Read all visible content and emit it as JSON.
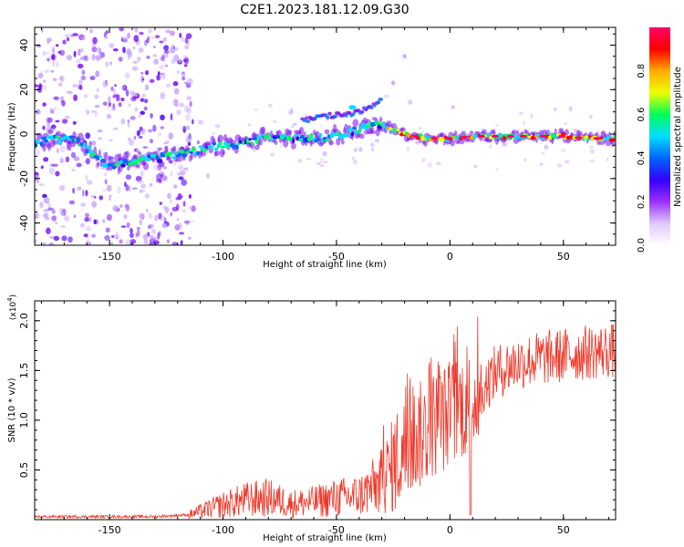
{
  "title": "C2E1.2023.181.12.09.G30",
  "colors": {
    "trace": "#ee3a2c",
    "scatter_low": "#c9a8ff",
    "scatter_mid": "#7a10f0",
    "scatter_high": "#4a00ff"
  },
  "chart_data": [
    {
      "type": "heatmap",
      "name": "spectrogram",
      "xlabel": "Height of straight line (km)",
      "ylabel": "Frequency (Hz)",
      "xlim": [
        -183,
        73
      ],
      "ylim": [
        -50,
        48
      ],
      "xticks": [
        -150,
        -100,
        -50,
        0,
        50
      ],
      "yticks": [
        -40,
        -20,
        0,
        20,
        40
      ],
      "colorbar": {
        "label": "Normalized spectral amplitude",
        "range": [
          0,
          1
        ],
        "ticks": [
          "0.0",
          "0.2",
          "0.4",
          "0.6",
          "0.8"
        ],
        "ramp": [
          "#ffffff",
          "#e0c8ff",
          "#9b30ff",
          "#3300ff",
          "#0066ff",
          "#00ddff",
          "#00ff55",
          "#eeff00",
          "#ffaa00",
          "#ff0000",
          "#ff0066"
        ]
      },
      "ridge": {
        "x": [
          -183,
          -175,
          -165,
          -150,
          -140,
          -130,
          -120,
          -110,
          -100,
          -90,
          -80,
          -70,
          -60,
          -50,
          -40,
          -35,
          -30,
          -25,
          -20,
          -15,
          -10,
          0,
          10,
          20,
          30,
          40,
          50,
          60,
          73
        ],
        "y": [
          -4,
          -2,
          -3,
          -14,
          -12,
          -11,
          -9,
          -7,
          -5,
          -4,
          -1,
          -2,
          -2,
          -1,
          2,
          4,
          4,
          2,
          0,
          -1,
          -2,
          -2,
          -1,
          -1,
          -1,
          -1,
          -1,
          -2,
          -2
        ]
      },
      "upper_branch": {
        "x": [
          -65,
          -55,
          -45,
          -40,
          -35,
          -30
        ],
        "y": [
          6,
          8,
          9,
          10,
          12,
          15
        ]
      },
      "isolated_points": {
        "x": [
          -20,
          -25
        ],
        "y": [
          35,
          23
        ]
      }
    },
    {
      "type": "line",
      "name": "snr",
      "xlabel": "Height of straight line (km)",
      "ylabel": "SNR (10 * v/v)",
      "y_multiplier": "(x10",
      "y_exponent": "4",
      "xlim": [
        -183,
        73
      ],
      "ylim": [
        0,
        2.2
      ],
      "xticks": [
        -150,
        -100,
        -50,
        0,
        50
      ],
      "yticks": [
        "0.5",
        "1.0",
        "1.5",
        "2.0"
      ],
      "envelope": {
        "x": [
          -183,
          -160,
          -130,
          -115,
          -100,
          -90,
          -80,
          -70,
          -60,
          -50,
          -40,
          -30,
          -25,
          -20,
          -15,
          -10,
          -5,
          0,
          5,
          8,
          10,
          15,
          20,
          30,
          40,
          50,
          60,
          73
        ],
        "y": [
          0.03,
          0.03,
          0.03,
          0.05,
          0.15,
          0.2,
          0.22,
          0.16,
          0.18,
          0.22,
          0.24,
          0.38,
          0.55,
          0.7,
          0.82,
          0.9,
          1.0,
          1.05,
          1.15,
          1.15,
          1.2,
          1.35,
          1.48,
          1.58,
          1.62,
          1.65,
          1.68,
          1.7
        ]
      },
      "dip": {
        "x": 9,
        "y": 0.05
      }
    }
  ]
}
